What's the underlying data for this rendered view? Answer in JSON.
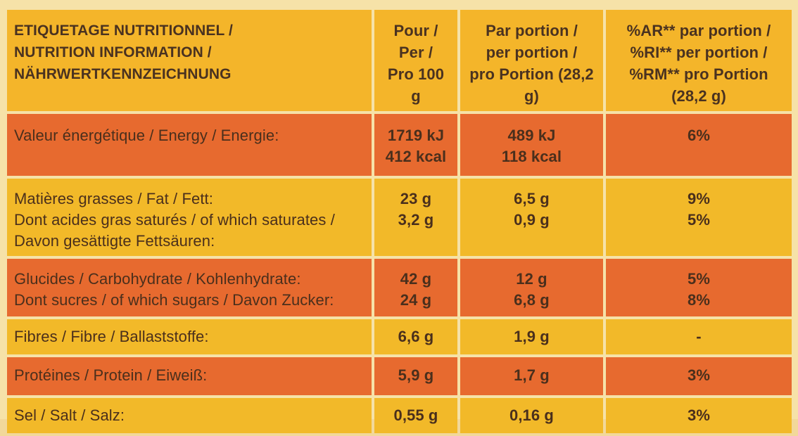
{
  "header": {
    "label_lines": [
      "ETIQUETAGE NUTRITIONNEL /",
      "NUTRITION INFORMATION /",
      "NÄHRWERTKENNZEICHNUNG"
    ],
    "per100_lines": [
      "Pour / Per /",
      "Pro 100 g"
    ],
    "portion_lines": [
      "Par portion /",
      "per portion /",
      "pro Portion (28,2 g)"
    ],
    "ri_lines": [
      "%AR** par portion /",
      "%RI** per portion /",
      "%RM** pro Portion (28,2 g)"
    ]
  },
  "rows": [
    {
      "label_lines": [
        "Valeur énergétique / Energy / Energie:"
      ],
      "per100_lines": [
        "1719 kJ",
        "412 kcal"
      ],
      "portion_lines": [
        "489 kJ",
        "118 kcal"
      ],
      "ri_lines": [
        "6%"
      ]
    },
    {
      "label_lines": [
        "Matières grasses / Fat / Fett:",
        "Dont acides gras saturés / of which saturates /",
        "Davon gesättigte Fettsäuren:"
      ],
      "per100_lines": [
        "23 g",
        "3,2 g"
      ],
      "portion_lines": [
        "6,5 g",
        "0,9 g"
      ],
      "ri_lines": [
        "9%",
        "5%"
      ]
    },
    {
      "label_lines": [
        "Glucides / Carbohydrate / Kohlenhydrate:",
        "Dont sucres / of which sugars / Davon Zucker:"
      ],
      "per100_lines": [
        "42 g",
        "24 g"
      ],
      "portion_lines": [
        "12 g",
        "6,8 g"
      ],
      "ri_lines": [
        "5%",
        "8%"
      ]
    },
    {
      "label_lines": [
        "Fibres / Fibre / Ballaststoffe:"
      ],
      "per100_lines": [
        "6,6 g"
      ],
      "portion_lines": [
        "1,9 g"
      ],
      "ri_lines": [
        "-"
      ]
    },
    {
      "label_lines": [
        "Protéines / Protein / Eiweiß:"
      ],
      "per100_lines": [
        "5,9 g"
      ],
      "portion_lines": [
        "1,7 g"
      ],
      "ri_lines": [
        "3%"
      ]
    },
    {
      "label_lines": [
        "Sel / Salt / Salz:"
      ],
      "per100_lines": [
        "0,55 g"
      ],
      "portion_lines": [
        "0,16 g"
      ],
      "ri_lines": [
        "3%"
      ]
    }
  ],
  "colors": {
    "header_bg": "#f4b52a",
    "orange_row": "#e76a2f",
    "yellow_row": "#f2b929",
    "text": "#4a2f1c"
  }
}
